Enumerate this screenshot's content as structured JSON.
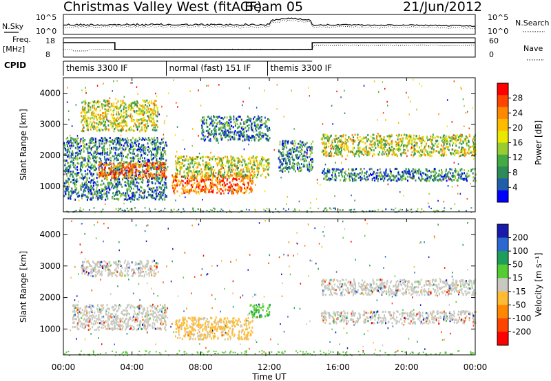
{
  "header": {
    "title": "Christmas Valley West (fitACF)",
    "beam": "Beam 05",
    "date": "21/Jun/2012"
  },
  "summary_panels": {
    "nsky_label": "N.Sky",
    "nsky_ticks": [
      "10^5",
      "10^0"
    ],
    "nsearch_label": "N.Search",
    "nsearch_ticks": [
      "10^5",
      "10^0"
    ],
    "freq_label": "Freq.",
    "freq_unit": "[MHz]",
    "freq_ticks": [
      "18",
      "8"
    ],
    "nave_label": "Nave",
    "nave_ticks": [
      "60",
      "0"
    ],
    "cpid_label": "CPID",
    "cpid_segments": [
      {
        "start": 0.0,
        "end": 6.0,
        "label": "themis 3300 IF"
      },
      {
        "start": 6.0,
        "end": 11.9,
        "label": "normal (fast) 151 IF"
      },
      {
        "start": 11.9,
        "end": 14.5,
        "label": "themis 3300 IF"
      }
    ]
  },
  "chart_data": [
    {
      "type": "heatmap",
      "name": "power",
      "ylabel": "Slant Range [km]",
      "ylim": [
        180,
        4500
      ],
      "yticks": [
        1000,
        2000,
        3000,
        4000
      ],
      "xlim": [
        0,
        24
      ],
      "colorbar": {
        "label": "Power [dB]",
        "ticks": [
          "28",
          "24",
          "20",
          "16",
          "12",
          "8",
          "4"
        ],
        "colors": [
          "#ff0000",
          "#ff4400",
          "#ff8800",
          "#ffbb00",
          "#e8e800",
          "#99cc33",
          "#44aa44",
          "#2e8b57",
          "#1f5faa",
          "#0000ff"
        ]
      },
      "regions": [
        {
          "t0": 0.0,
          "t1": 6.0,
          "r0": 600,
          "r1": 2600,
          "level": "low"
        },
        {
          "t0": 2.0,
          "t1": 6.0,
          "r0": 1300,
          "r1": 1800,
          "level": "high"
        },
        {
          "t0": 1.0,
          "t1": 5.5,
          "r0": 2800,
          "r1": 3800,
          "level": "mid"
        },
        {
          "t0": 6.3,
          "t1": 11.0,
          "r0": 800,
          "r1": 1400,
          "level": "high"
        },
        {
          "t0": 6.5,
          "t1": 12.0,
          "r0": 1300,
          "r1": 2000,
          "level": "mid"
        },
        {
          "t0": 8.0,
          "t1": 12.0,
          "r0": 2500,
          "r1": 3300,
          "level": "low"
        },
        {
          "t0": 15.0,
          "t1": 24.0,
          "r0": 2000,
          "r1": 2700,
          "level": "mid"
        },
        {
          "t0": 15.0,
          "t1": 24.0,
          "r0": 1200,
          "r1": 1600,
          "level": "low"
        },
        {
          "t0": 12.5,
          "t1": 14.5,
          "r0": 1500,
          "r1": 2500,
          "level": "low"
        }
      ]
    },
    {
      "type": "heatmap",
      "name": "velocity",
      "ylabel": "Slant Range [km]",
      "ylim": [
        180,
        4500
      ],
      "yticks": [
        1000,
        2000,
        3000,
        4000
      ],
      "xlim": [
        0,
        24
      ],
      "xlabel": "Time UT",
      "xticks": [
        "00:00",
        "04:00",
        "08:00",
        "12:00",
        "16:00",
        "20:00",
        "00:00"
      ],
      "colorbar": {
        "label": "Velocity [m s⁻¹]",
        "ticks": [
          "200",
          "100",
          "50",
          "15",
          "-15",
          "-50",
          "-100",
          "-200"
        ],
        "colors": [
          "#1a1aaa",
          "#2a6ad0",
          "#1e9e5a",
          "#55cc33",
          "#c8c8c0",
          "#ffbb33",
          "#ff8800",
          "#ff4400",
          "#ff0000"
        ]
      },
      "regions": [
        {
          "t0": 0.5,
          "t1": 6.0,
          "r0": 1000,
          "r1": 1800,
          "level": "grey"
        },
        {
          "t0": 1.0,
          "t1": 5.5,
          "r0": 2700,
          "r1": 3200,
          "level": "grey"
        },
        {
          "t0": 6.5,
          "t1": 11.0,
          "r0": 700,
          "r1": 1400,
          "level": "orange"
        },
        {
          "t0": 10.8,
          "t1": 12.0,
          "r0": 1400,
          "r1": 1800,
          "level": "green"
        },
        {
          "t0": 15.0,
          "t1": 24.0,
          "r0": 2100,
          "r1": 2600,
          "level": "grey"
        },
        {
          "t0": 15.0,
          "t1": 24.0,
          "r0": 1200,
          "r1": 1600,
          "level": "grey"
        }
      ]
    }
  ]
}
